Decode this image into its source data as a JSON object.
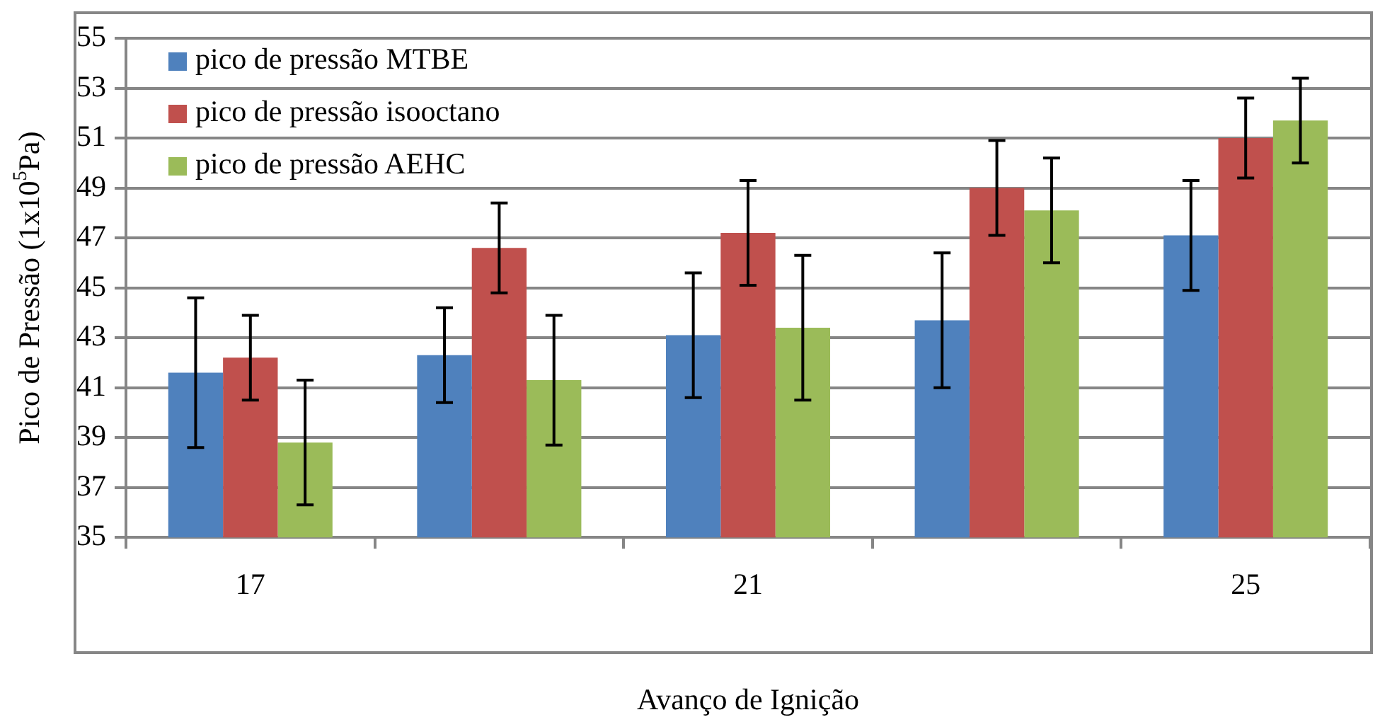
{
  "chart_data": {
    "type": "bar",
    "xlabel": "Avanço de Ignição",
    "ylabel": "Pico de Pressão (1x10$^{5}$Pa)",
    "categories": [
      "17",
      null,
      "21",
      null,
      "25"
    ],
    "series": [
      {
        "name": "pico de pressão MTBE",
        "color": "#4f81bd",
        "values": [
          41.6,
          42.3,
          43.1,
          43.7,
          47.1
        ],
        "errors": [
          3.0,
          1.9,
          2.5,
          2.7,
          2.2
        ]
      },
      {
        "name": "pico de pressão isooctano",
        "color": "#c0504d",
        "values": [
          42.2,
          46.6,
          47.2,
          49.0,
          51.0
        ],
        "errors": [
          1.7,
          1.8,
          2.1,
          1.9,
          1.6
        ]
      },
      {
        "name": "pico de pressão AEHC",
        "color": "#9bbb59",
        "values": [
          38.8,
          41.3,
          43.4,
          48.1,
          51.7
        ],
        "errors": [
          2.5,
          2.6,
          2.9,
          2.1,
          1.7
        ]
      }
    ],
    "ylim": [
      35,
      55
    ],
    "yticks": [
      35,
      37,
      39,
      41,
      43,
      45,
      47,
      49,
      51,
      53,
      55
    ],
    "grid": "y",
    "legend": "top left"
  }
}
